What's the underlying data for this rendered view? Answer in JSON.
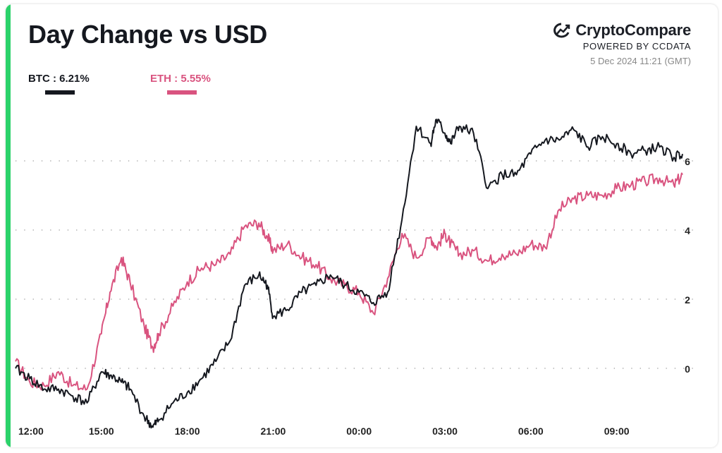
{
  "title": "Day Change vs USD",
  "brand": {
    "name": "CryptoCompare",
    "powered_by": "POWERED BY CCDATA",
    "timestamp": "5 Dec 2024 11:21 (GMT)",
    "icon": "cryptocompare-logo-icon"
  },
  "colors": {
    "btc": "#15181f",
    "eth": "#d9537f",
    "accent": "#2bd26a",
    "grid": "#9a9a9a"
  },
  "legend": [
    {
      "label": "BTC : 6.21%",
      "series": "BTC"
    },
    {
      "label": "ETH : 5.55%",
      "series": "ETH"
    }
  ],
  "chart_data": {
    "type": "line",
    "title": "Day Change vs USD",
    "xlabel": "",
    "ylabel": "",
    "x_tick_labels": [
      "12:00",
      "15:00",
      "18:00",
      "21:00",
      "00:00",
      "03:00",
      "06:00",
      "09:00"
    ],
    "y_ticks": [
      0,
      2,
      4,
      6
    ],
    "ylim": [
      -2,
      8
    ],
    "grid": true,
    "legend_position": "top-left",
    "x_hours_since_start": [
      0,
      0.5,
      1,
      1.5,
      2,
      2.5,
      3,
      3.3,
      3.7,
      4,
      4.5,
      4.8,
      5,
      5.5,
      6,
      6.5,
      7,
      7.5,
      8,
      8.5,
      8.8,
      9,
      9.5,
      10,
      10.5,
      11,
      11.5,
      12,
      12.5,
      13,
      13.5,
      14,
      14.5,
      14.7,
      15,
      15.2,
      15.5,
      16,
      16.5,
      17,
      17.5,
      18,
      18.5,
      19,
      19.5,
      20,
      20.5,
      21,
      21.5,
      22,
      22.5,
      23,
      23.3
    ],
    "series": [
      {
        "name": "BTC",
        "values": [
          0,
          -0.3,
          -0.6,
          -0.6,
          -0.8,
          -1.0,
          -0.1,
          -0.2,
          -0.4,
          -0.6,
          -1.4,
          -1.7,
          -1.5,
          -1.0,
          -0.7,
          -0.3,
          0.2,
          0.8,
          2.4,
          2.7,
          2.4,
          1.5,
          1.7,
          2.2,
          2.4,
          2.7,
          2.4,
          2.2,
          1.9,
          2.2,
          4.3,
          7.0,
          6.5,
          7.2,
          6.8,
          6.5,
          7.0,
          6.8,
          5.2,
          5.6,
          5.6,
          6.2,
          6.6,
          6.6,
          6.9,
          6.4,
          6.7,
          6.5,
          6.2,
          6.3,
          6.4,
          6.1,
          6.2
        ]
      },
      {
        "name": "ETH",
        "values": [
          0.2,
          -0.4,
          -0.5,
          -0.1,
          -0.5,
          -0.6,
          1.0,
          2.2,
          3.2,
          2.5,
          1.2,
          0.6,
          1.0,
          1.8,
          2.5,
          2.9,
          3.0,
          3.3,
          4.1,
          4.2,
          3.8,
          3.4,
          3.6,
          3.2,
          3.0,
          2.6,
          2.4,
          2.2,
          1.6,
          2.6,
          3.9,
          3.2,
          3.8,
          3.5,
          3.9,
          3.6,
          3.3,
          3.4,
          3.1,
          3.3,
          3.3,
          3.6,
          3.5,
          4.6,
          4.9,
          5.0,
          5.0,
          5.2,
          5.3,
          5.4,
          5.5,
          5.3,
          5.6
        ]
      }
    ]
  }
}
